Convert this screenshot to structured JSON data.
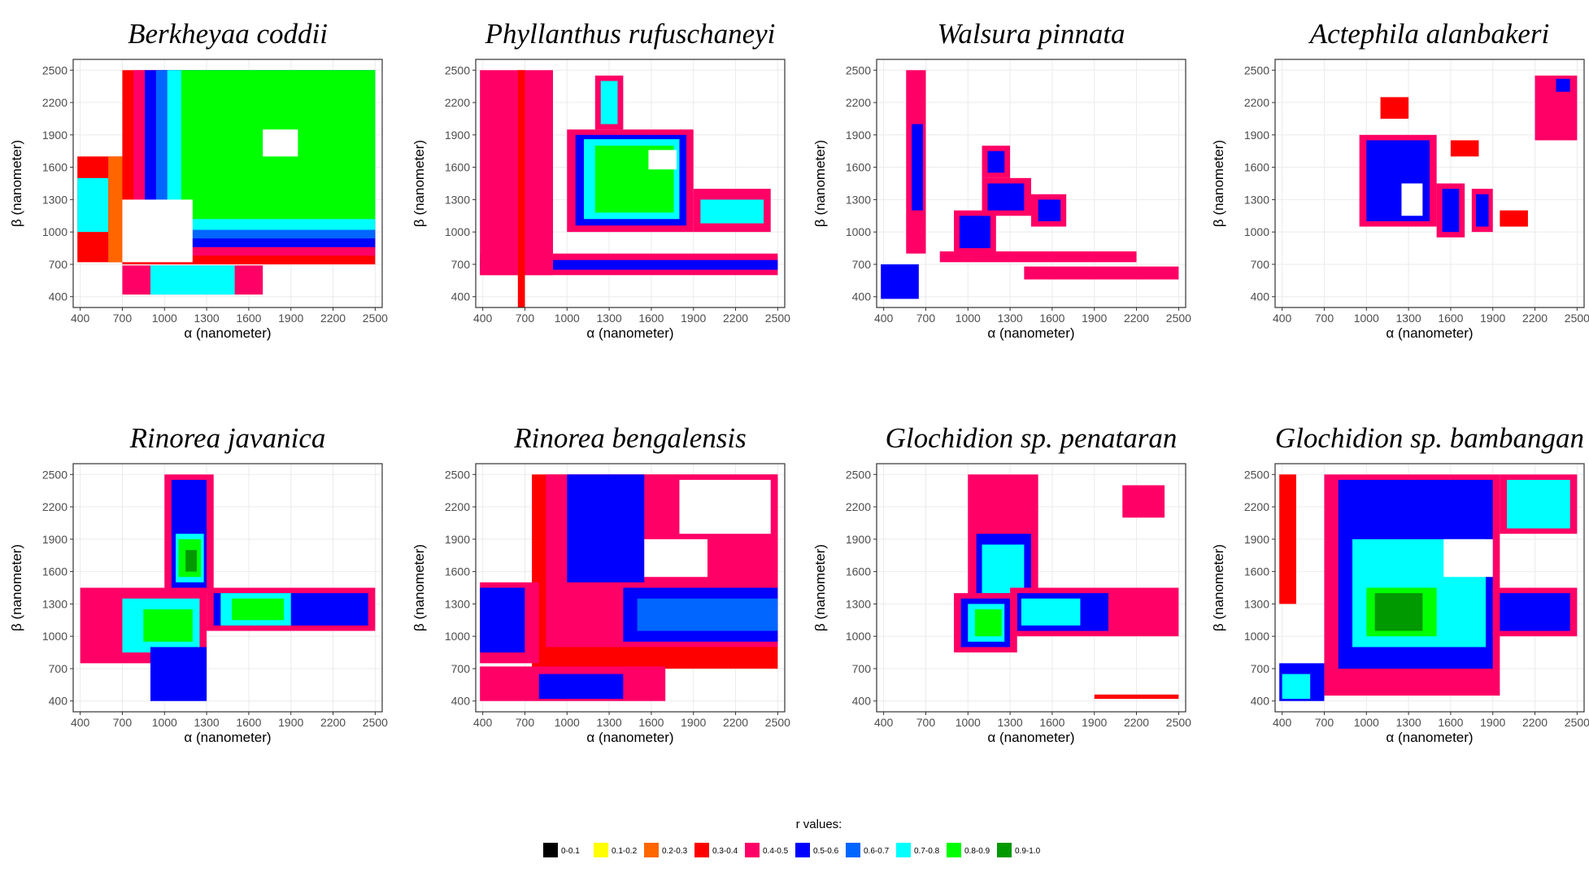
{
  "chart_data": {
    "type": "heatmap",
    "subtype": "filled-contour",
    "panels": [
      {
        "title": "Berkheyaa coddii",
        "xlabel": "α (nanometer)",
        "ylabel": "β (nanometer)"
      },
      {
        "title": "Phyllanthus rufuschaneyi",
        "xlabel": "α (nanometer)",
        "ylabel": "β (nanometer)"
      },
      {
        "title": "Walsura pinnata",
        "xlabel": "α (nanometer)",
        "ylabel": "β (nanometer)"
      },
      {
        "title": "Actephila alanbakeri",
        "xlabel": "α (nanometer)",
        "ylabel": "β (nanometer)"
      },
      {
        "title": "Rinorea javanica",
        "xlabel": "α (nanometer)",
        "ylabel": "β (nanometer)"
      },
      {
        "title": "Rinorea bengalensis",
        "xlabel": "α (nanometer)",
        "ylabel": "β (nanometer)"
      },
      {
        "title": "Glochidion sp. penataran",
        "xlabel": "α (nanometer)",
        "ylabel": "β (nanometer)"
      },
      {
        "title": "Glochidion sp. bambangan",
        "xlabel": "α (nanometer)",
        "ylabel": "β (nanometer)"
      }
    ],
    "x_ticks": [
      400,
      700,
      1000,
      1300,
      1600,
      1900,
      2200,
      2500
    ],
    "y_ticks": [
      400,
      700,
      1000,
      1300,
      1600,
      1900,
      2200,
      2500
    ],
    "xlim": [
      350,
      2550
    ],
    "ylim": [
      300,
      2600
    ],
    "grid": true,
    "legend": {
      "title": "r values:",
      "position": "bottom",
      "bins": [
        {
          "label": "0-0.1",
          "color": "#000000"
        },
        {
          "label": "0.1-0.2",
          "color": "#ffff00"
        },
        {
          "label": "0.2-0.3",
          "color": "#ff6600"
        },
        {
          "label": "0.3-0.4",
          "color": "#ff0000"
        },
        {
          "label": "0.4-0.5",
          "color": "#ff0066"
        },
        {
          "label": "0.5-0.6",
          "color": "#0000ff"
        },
        {
          "label": "0.6-0.7",
          "color": "#0066ff"
        },
        {
          "label": "0.7-0.8",
          "color": "#00ffff"
        },
        {
          "label": "0.8-0.9",
          "color": "#00ff00"
        },
        {
          "label": "0.9-1.0",
          "color": "#009900"
        }
      ]
    },
    "regions": [
      [
        {
          "x": [
            700,
            2500
          ],
          "y": [
            700,
            2500
          ],
          "bin": 3
        },
        {
          "x": [
            780,
            2500
          ],
          "y": [
            780,
            2500
          ],
          "bin": 4
        },
        {
          "x": [
            860,
            2500
          ],
          "y": [
            860,
            2500
          ],
          "bin": 5
        },
        {
          "x": [
            940,
            2500
          ],
          "y": [
            940,
            2500
          ],
          "bin": 6
        },
        {
          "x": [
            1020,
            2500
          ],
          "y": [
            1020,
            2500
          ],
          "bin": 7
        },
        {
          "x": [
            1120,
            2500
          ],
          "y": [
            1120,
            2500
          ],
          "bin": 8
        },
        {
          "x": [
            1700,
            1950
          ],
          "y": [
            1700,
            1950
          ],
          "bin": -1
        },
        {
          "x": [
            380,
            700
          ],
          "y": [
            720,
            1700
          ],
          "bin": 3
        },
        {
          "x": [
            380,
            600
          ],
          "y": [
            1000,
            1500
          ],
          "bin": 7
        },
        {
          "x": [
            600,
            700
          ],
          "y": [
            720,
            1700
          ],
          "bin": 2
        },
        {
          "x": [
            700,
            1200
          ],
          "y": [
            720,
            1300
          ],
          "bin": -1
        },
        {
          "x": [
            700,
            1700
          ],
          "y": [
            420,
            690
          ],
          "bin": 4
        },
        {
          "x": [
            900,
            1500
          ],
          "y": [
            420,
            690
          ],
          "bin": 7
        }
      ],
      [
        {
          "x": [
            380,
            2500
          ],
          "y": [
            600,
            800
          ],
          "bin": 4
        },
        {
          "x": [
            380,
            2500
          ],
          "y": [
            650,
            740
          ],
          "bin": 5
        },
        {
          "x": [
            380,
            900
          ],
          "y": [
            600,
            2500
          ],
          "bin": 4
        },
        {
          "x": [
            650,
            700
          ],
          "y": [
            300,
            2500
          ],
          "bin": 3
        },
        {
          "x": [
            1000,
            1900
          ],
          "y": [
            1000,
            1950
          ],
          "bin": 4
        },
        {
          "x": [
            1060,
            1850
          ],
          "y": [
            1060,
            1900
          ],
          "bin": 5
        },
        {
          "x": [
            1120,
            1800
          ],
          "y": [
            1120,
            1860
          ],
          "bin": 7
        },
        {
          "x": [
            1200,
            1760
          ],
          "y": [
            1180,
            1800
          ],
          "bin": 8
        },
        {
          "x": [
            1900,
            2450
          ],
          "y": [
            1000,
            1400
          ],
          "bin": 4
        },
        {
          "x": [
            1950,
            2400
          ],
          "y": [
            1080,
            1300
          ],
          "bin": 7
        },
        {
          "x": [
            1200,
            1400
          ],
          "y": [
            1950,
            2450
          ],
          "bin": 4
        },
        {
          "x": [
            1240,
            1360
          ],
          "y": [
            2000,
            2400
          ],
          "bin": 7
        },
        {
          "x": [
            1580,
            1780
          ],
          "y": [
            1580,
            1760
          ],
          "bin": -1
        }
      ],
      [
        {
          "x": [
            560,
            700
          ],
          "y": [
            800,
            2500
          ],
          "bin": 4
        },
        {
          "x": [
            600,
            680
          ],
          "y": [
            1200,
            2000
          ],
          "bin": 5
        },
        {
          "x": [
            800,
            2200
          ],
          "y": [
            720,
            820
          ],
          "bin": 4
        },
        {
          "x": [
            900,
            1200
          ],
          "y": [
            800,
            1200
          ],
          "bin": 4
        },
        {
          "x": [
            940,
            1160
          ],
          "y": [
            850,
            1150
          ],
          "bin": 5
        },
        {
          "x": [
            1100,
            1450
          ],
          "y": [
            1150,
            1500
          ],
          "bin": 4
        },
        {
          "x": [
            1140,
            1400
          ],
          "y": [
            1200,
            1450
          ],
          "bin": 5
        },
        {
          "x": [
            1450,
            1700
          ],
          "y": [
            1050,
            1350
          ],
          "bin": 4
        },
        {
          "x": [
            1500,
            1660
          ],
          "y": [
            1100,
            1300
          ],
          "bin": 5
        },
        {
          "x": [
            1100,
            1300
          ],
          "y": [
            1500,
            1800
          ],
          "bin": 4
        },
        {
          "x": [
            1140,
            1260
          ],
          "y": [
            1550,
            1750
          ],
          "bin": 5
        },
        {
          "x": [
            1400,
            2500
          ],
          "y": [
            560,
            680
          ],
          "bin": 4
        },
        {
          "x": [
            380,
            650
          ],
          "y": [
            380,
            700
          ],
          "bin": 5
        }
      ],
      [
        {
          "x": [
            950,
            1500
          ],
          "y": [
            1050,
            1900
          ],
          "bin": 4
        },
        {
          "x": [
            1000,
            1450
          ],
          "y": [
            1100,
            1850
          ],
          "bin": 5
        },
        {
          "x": [
            1250,
            1400
          ],
          "y": [
            1150,
            1450
          ],
          "bin": -1
        },
        {
          "x": [
            1500,
            1700
          ],
          "y": [
            950,
            1450
          ],
          "bin": 4
        },
        {
          "x": [
            1540,
            1660
          ],
          "y": [
            1000,
            1400
          ],
          "bin": 5
        },
        {
          "x": [
            1750,
            1900
          ],
          "y": [
            1000,
            1400
          ],
          "bin": 4
        },
        {
          "x": [
            1780,
            1870
          ],
          "y": [
            1050,
            1350
          ],
          "bin": 5
        },
        {
          "x": [
            1100,
            1300
          ],
          "y": [
            2050,
            2250
          ],
          "bin": 3
        },
        {
          "x": [
            1950,
            2150
          ],
          "y": [
            1050,
            1200
          ],
          "bin": 3
        },
        {
          "x": [
            2200,
            2500
          ],
          "y": [
            1850,
            2450
          ],
          "bin": 4
        },
        {
          "x": [
            2350,
            2450
          ],
          "y": [
            2300,
            2420
          ],
          "bin": 5
        },
        {
          "x": [
            1600,
            1800
          ],
          "y": [
            1700,
            1850
          ],
          "bin": 3
        }
      ],
      [
        {
          "x": [
            1000,
            1350
          ],
          "y": [
            1400,
            2500
          ],
          "bin": 4
        },
        {
          "x": [
            1050,
            1300
          ],
          "y": [
            1450,
            2450
          ],
          "bin": 5
        },
        {
          "x": [
            1080,
            1280
          ],
          "y": [
            1500,
            1950
          ],
          "bin": 7
        },
        {
          "x": [
            1100,
            1260
          ],
          "y": [
            1550,
            1900
          ],
          "bin": 8
        },
        {
          "x": [
            1150,
            1230
          ],
          "y": [
            1600,
            1800
          ],
          "bin": 9
        },
        {
          "x": [
            1300,
            2500
          ],
          "y": [
            1050,
            1450
          ],
          "bin": 4
        },
        {
          "x": [
            1350,
            2450
          ],
          "y": [
            1100,
            1400
          ],
          "bin": 5
        },
        {
          "x": [
            1400,
            1900
          ],
          "y": [
            1100,
            1400
          ],
          "bin": 7
        },
        {
          "x": [
            1480,
            1850
          ],
          "y": [
            1150,
            1350
          ],
          "bin": 8
        },
        {
          "x": [
            400,
            1300
          ],
          "y": [
            750,
            1450
          ],
          "bin": 4
        },
        {
          "x": [
            700,
            1250
          ],
          "y": [
            850,
            1350
          ],
          "bin": 7
        },
        {
          "x": [
            850,
            1200
          ],
          "y": [
            950,
            1250
          ],
          "bin": 8
        },
        {
          "x": [
            900,
            1300
          ],
          "y": [
            400,
            900
          ],
          "bin": 5
        }
      ],
      [
        {
          "x": [
            750,
            2500
          ],
          "y": [
            700,
            2500
          ],
          "bin": 3
        },
        {
          "x": [
            850,
            2500
          ],
          "y": [
            900,
            2500
          ],
          "bin": 4
        },
        {
          "x": [
            1000,
            1550
          ],
          "y": [
            1500,
            2500
          ],
          "bin": 5
        },
        {
          "x": [
            1400,
            2500
          ],
          "y": [
            950,
            1450
          ],
          "bin": 5
        },
        {
          "x": [
            1500,
            2500
          ],
          "y": [
            1050,
            1350
          ],
          "bin": 6
        },
        {
          "x": [
            1550,
            2000
          ],
          "y": [
            1550,
            1900
          ],
          "bin": -1
        },
        {
          "x": [
            1800,
            2450
          ],
          "y": [
            1950,
            2450
          ],
          "bin": -1
        },
        {
          "x": [
            380,
            1700
          ],
          "y": [
            400,
            720
          ],
          "bin": 4
        },
        {
          "x": [
            800,
            1400
          ],
          "y": [
            420,
            650
          ],
          "bin": 5
        },
        {
          "x": [
            380,
            800
          ],
          "y": [
            750,
            1500
          ],
          "bin": 4
        },
        {
          "x": [
            380,
            700
          ],
          "y": [
            850,
            1450
          ],
          "bin": 5
        }
      ],
      [
        {
          "x": [
            1000,
            1500
          ],
          "y": [
            1050,
            2500
          ],
          "bin": 4
        },
        {
          "x": [
            1060,
            1450
          ],
          "y": [
            1300,
            1950
          ],
          "bin": 5
        },
        {
          "x": [
            1100,
            1400
          ],
          "y": [
            1400,
            1850
          ],
          "bin": 7
        },
        {
          "x": [
            1300,
            2500
          ],
          "y": [
            1000,
            1450
          ],
          "bin": 4
        },
        {
          "x": [
            1350,
            2000
          ],
          "y": [
            1050,
            1400
          ],
          "bin": 5
        },
        {
          "x": [
            1380,
            1800
          ],
          "y": [
            1100,
            1350
          ],
          "bin": 7
        },
        {
          "x": [
            900,
            1350
          ],
          "y": [
            850,
            1400
          ],
          "bin": 4
        },
        {
          "x": [
            950,
            1300
          ],
          "y": [
            900,
            1350
          ],
          "bin": 5
        },
        {
          "x": [
            1000,
            1260
          ],
          "y": [
            950,
            1300
          ],
          "bin": 7
        },
        {
          "x": [
            1050,
            1240
          ],
          "y": [
            1000,
            1250
          ],
          "bin": 8
        },
        {
          "x": [
            2100,
            2400
          ],
          "y": [
            2100,
            2400
          ],
          "bin": 4
        },
        {
          "x": [
            1900,
            2500
          ],
          "y": [
            420,
            460
          ],
          "bin": 3
        }
      ],
      [
        {
          "x": [
            700,
            1950
          ],
          "y": [
            450,
            2500
          ],
          "bin": 4
        },
        {
          "x": [
            800,
            1900
          ],
          "y": [
            700,
            2450
          ],
          "bin": 5
        },
        {
          "x": [
            900,
            1850
          ],
          "y": [
            900,
            1900
          ],
          "bin": 7
        },
        {
          "x": [
            1000,
            1500
          ],
          "y": [
            1000,
            1450
          ],
          "bin": 8
        },
        {
          "x": [
            1060,
            1400
          ],
          "y": [
            1050,
            1400
          ],
          "bin": 9
        },
        {
          "x": [
            1550,
            1900
          ],
          "y": [
            1550,
            1900
          ],
          "bin": -1
        },
        {
          "x": [
            1900,
            2500
          ],
          "y": [
            1000,
            1450
          ],
          "bin": 4
        },
        {
          "x": [
            1950,
            2450
          ],
          "y": [
            1050,
            1400
          ],
          "bin": 5
        },
        {
          "x": [
            1950,
            2500
          ],
          "y": [
            1950,
            2500
          ],
          "bin": 4
        },
        {
          "x": [
            2000,
            2450
          ],
          "y": [
            2000,
            2450
          ],
          "bin": 7
        },
        {
          "x": [
            380,
            700
          ],
          "y": [
            400,
            750
          ],
          "bin": 5
        },
        {
          "x": [
            400,
            600
          ],
          "y": [
            420,
            650
          ],
          "bin": 7
        },
        {
          "x": [
            380,
            500
          ],
          "y": [
            1300,
            2500
          ],
          "bin": 3
        }
      ]
    ]
  }
}
